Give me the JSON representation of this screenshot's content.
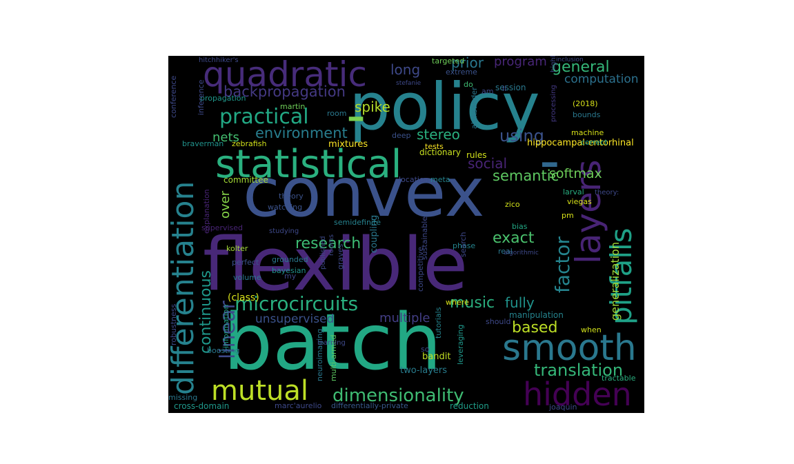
{
  "words": [
    {
      "text": "batch",
      "color": "#22a884"
    },
    {
      "text": "flexible",
      "color": "#482878"
    },
    {
      "text": "convex",
      "color": "#3b528b"
    },
    {
      "text": "policy",
      "color": "#26828e"
    },
    {
      "text": "-",
      "color": "#7ad151"
    },
    {
      "text": "-",
      "color": "#31688e"
    },
    {
      "text": "statistical",
      "color": "#2ab07f"
    },
    {
      "text": "quadratic",
      "color": "#472c7a"
    },
    {
      "text": "differentiation",
      "color": "#26828e"
    },
    {
      "text": "smooth",
      "color": "#2a788e"
    },
    {
      "text": "hidden",
      "color": "#440154"
    },
    {
      "text": "layers",
      "color": "#482475"
    },
    {
      "text": "pitfalls",
      "color": "#1fa187"
    },
    {
      "text": "mutual",
      "color": "#bddf26"
    },
    {
      "text": "dimensionality",
      "color": "#3fbc73"
    },
    {
      "text": "microcircuits",
      "color": "#29af7f"
    },
    {
      "text": "practical",
      "color": "#22a884"
    },
    {
      "text": "backpropagation",
      "color": "#443983"
    },
    {
      "text": "environment",
      "color": "#287d8e"
    },
    {
      "text": "research",
      "color": "#3dbc74"
    },
    {
      "text": "translation",
      "color": "#35b779"
    },
    {
      "text": "linear",
      "color": "#3e4989"
    },
    {
      "text": "continuous",
      "color": "#1f988b"
    },
    {
      "text": "exact",
      "color": "#4ac16d"
    },
    {
      "text": "factor",
      "color": "#25848e"
    },
    {
      "text": "generalization",
      "color": "#a2da37"
    },
    {
      "text": "general",
      "color": "#35b779"
    },
    {
      "text": "computation",
      "color": "#2c718e"
    },
    {
      "text": "using",
      "color": "#3b528b"
    },
    {
      "text": "social",
      "color": "#482475"
    },
    {
      "text": "semantic",
      "color": "#5ec962"
    },
    {
      "text": "softmax",
      "color": "#6ece58"
    },
    {
      "text": "stereo",
      "color": "#2ab07f"
    },
    {
      "text": "spike",
      "color": "#b5de2b"
    },
    {
      "text": "nets",
      "color": "#44bf70"
    },
    {
      "text": "long",
      "color": "#3e4989"
    },
    {
      "text": "prior",
      "color": "#2a788e"
    },
    {
      "text": "program",
      "color": "#482677"
    },
    {
      "text": "music",
      "color": "#2ab07f"
    },
    {
      "text": "fully",
      "color": "#20938c"
    },
    {
      "text": "based",
      "color": "#bddf26"
    },
    {
      "text": "multiple",
      "color": "#433e85"
    },
    {
      "text": "unsupervised",
      "color": "#3b528b"
    },
    {
      "text": "over",
      "color": "#86d549"
    },
    {
      "text": "(class)",
      "color": "#d8e219"
    },
    {
      "text": "hippocampal-entorhinal",
      "color": "#fde725"
    },
    {
      "text": "committee",
      "color": "#a5db36"
    },
    {
      "text": "mixtures",
      "color": "#fde725"
    },
    {
      "text": "cross-domain",
      "color": "#1f988b"
    },
    {
      "text": "differentially-private",
      "color": "#38598c"
    },
    {
      "text": "reduction",
      "color": "#1f9e89"
    },
    {
      "text": "tractable",
      "color": "#2ab07f"
    },
    {
      "text": "two-layers",
      "color": "#287d8e"
    },
    {
      "text": "bandit",
      "color": "#c2df23"
    },
    {
      "text": "manipulation",
      "color": "#25848e"
    },
    {
      "text": "coupling",
      "color": "#2a788e"
    },
    {
      "text": "rules",
      "color": "#d2e21b"
    },
    {
      "text": "dictionary",
      "color": "#c8e020"
    },
    {
      "text": "tests",
      "color": "#fde725"
    },
    {
      "text": "deep",
      "color": "#3b528b"
    },
    {
      "text": "machine",
      "color": "#d8e219"
    },
    {
      "text": "correct",
      "color": "#20a386"
    },
    {
      "text": "bounds",
      "color": "#2a788e"
    },
    {
      "text": "processing",
      "color": "#443983"
    },
    {
      "text": "highlights",
      "color": "#3e4989"
    },
    {
      "text": "session",
      "color": "#2a788e"
    },
    {
      "text": "extreme",
      "color": "#3b528b"
    },
    {
      "text": "targeted",
      "color": "#6ece58"
    },
    {
      "text": "martin",
      "color": "#6ece58"
    },
    {
      "text": "room",
      "color": "#2a788e"
    },
    {
      "text": "propagation",
      "color": "#1f988b"
    },
    {
      "text": "braverman",
      "color": "#20938c"
    },
    {
      "text": "zebrafish",
      "color": "#d2e21b"
    },
    {
      "text": "theory",
      "color": "#3b528b"
    },
    {
      "text": "watching",
      "color": "#3b528b"
    },
    {
      "text": "explanation",
      "color": "#482475"
    },
    {
      "text": "supervised",
      "color": "#482475"
    },
    {
      "text": "kolter",
      "color": "#a5db36"
    },
    {
      "text": "perfect",
      "color": "#3b528b"
    },
    {
      "text": "volume",
      "color": "#2a788e"
    },
    {
      "text": "bayesian",
      "color": "#21918c"
    },
    {
      "text": "grounded",
      "color": "#2a788e"
    },
    {
      "text": "semidefinite",
      "color": "#26828e"
    },
    {
      "text": "location",
      "color": "#3e4989"
    },
    {
      "text": "meta",
      "color": "#25848e"
    },
    {
      "text": "larval",
      "color": "#28ae80"
    },
    {
      "text": "zico",
      "color": "#d2e21b"
    },
    {
      "text": "bias",
      "color": "#22a884"
    },
    {
      "text": "pm",
      "color": "#d8e219"
    },
    {
      "text": "viegas",
      "color": "#d8e219"
    },
    {
      "text": "phase",
      "color": "#25848e"
    },
    {
      "text": "real",
      "color": "#2a788e"
    },
    {
      "text": "search",
      "color": "#3e4989"
    },
    {
      "text": "where",
      "color": "#d8e219"
    },
    {
      "text": "should",
      "color": "#3e4989"
    },
    {
      "text": "when",
      "color": "#d2e21b"
    },
    {
      "text": "tutorials",
      "color": "#25848e"
    },
    {
      "text": "leveraging",
      "color": "#1f988b"
    },
    {
      "text": "neuroimaging",
      "color": "#2a788e"
    },
    {
      "text": "multi-armed",
      "color": "#5ec962"
    },
    {
      "text": "information",
      "color": "#20a386"
    },
    {
      "text": "boosting",
      "color": "#2a788e"
    },
    {
      "text": "missing",
      "color": "#2a788e"
    },
    {
      "text": "marc'aurelio",
      "color": "#3e4989"
    },
    {
      "text": "joaquin",
      "color": "#3e4989"
    },
    {
      "text": "(2018)",
      "color": "#d8e219"
    },
    {
      "text": "aleksander",
      "color": "#2a788e"
    },
    {
      "text": "sustainable",
      "color": "#3e4989"
    },
    {
      "text": "competitive",
      "color": "#3e4989"
    },
    {
      "text": "robustness",
      "color": "#3e4989"
    },
    {
      "text": "conference",
      "color": "#3e4989"
    },
    {
      "text": "inference",
      "color": "#3e4989"
    },
    {
      "text": "studying",
      "color": "#3e4989"
    },
    {
      "text": "so",
      "color": "#3e4989"
    },
    {
      "text": "do",
      "color": "#3fbc73"
    },
    {
      "text": "am",
      "color": "#3e4989"
    },
    {
      "text": "li",
      "color": "#3e4989"
    },
    {
      "text": "my",
      "color": "#3e4989"
    },
    {
      "text": "hitchhiker's",
      "color": "#3e4989"
    },
    {
      "text": "inclusion",
      "color": "#3e4989"
    },
    {
      "text": "stefanie",
      "color": "#3e4989"
    },
    {
      "text": "learning",
      "color": "#3e4989"
    },
    {
      "text": "theory:",
      "color": "#3e4989"
    },
    {
      "text": "rooms",
      "color": "#3e4989"
    },
    {
      "text": "published",
      "color": "#3e4989"
    },
    {
      "text": "algorithmic",
      "color": "#3e4989"
    },
    {
      "text": "graves",
      "color": "#3e4989"
    }
  ]
}
